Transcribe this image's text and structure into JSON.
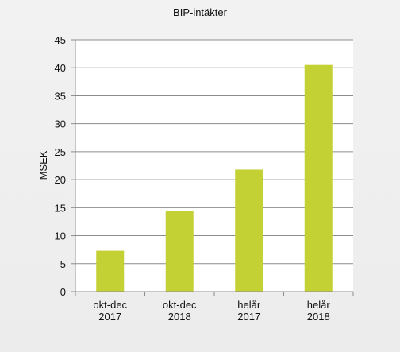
{
  "chart_data": {
    "type": "bar",
    "title": "BIP-intäkter",
    "ylabel": "MSEK",
    "xlabel": "",
    "categories": [
      [
        "okt-dec",
        "2017"
      ],
      [
        "okt-dec",
        "2018"
      ],
      [
        "helår",
        "2017"
      ],
      [
        "helår",
        "2018"
      ]
    ],
    "values": [
      7.3,
      14.4,
      21.8,
      40.5
    ],
    "ylim": [
      0,
      45
    ],
    "yticks": [
      0,
      5,
      10,
      15,
      20,
      25,
      30,
      35,
      40,
      45
    ],
    "grid": true,
    "legend": false,
    "bar_color": "#c4d134",
    "plot_background": "#ffffff"
  }
}
